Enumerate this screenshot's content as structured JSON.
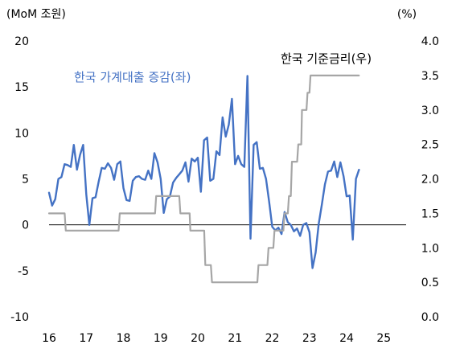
{
  "chart_data": {
    "type": "line",
    "left_unit": "(MoM 조원)",
    "right_unit": "(%)",
    "x_ticks": [
      "16",
      "17",
      "18",
      "19",
      "20",
      "21",
      "22",
      "23",
      "24",
      "25"
    ],
    "x_range": [
      2016,
      2025.6
    ],
    "y_left_ticks": [
      "20",
      "15",
      "10",
      "5",
      "0",
      "-5",
      "-10"
    ],
    "y_left_range": [
      -10,
      20
    ],
    "y_right_ticks": [
      "4.0",
      "3.5",
      "3.0",
      "2.5",
      "2.0",
      "1.5",
      "1.0",
      "0.5",
      "0.0"
    ],
    "y_right_range": [
      0,
      4
    ],
    "grid": false,
    "zero_line": true,
    "series": [
      {
        "name": "한국 가계대출 증감(좌)",
        "axis": "left",
        "color": "#4472C4",
        "x": [
          2016.0,
          2016.083,
          2016.167,
          2016.25,
          2016.333,
          2016.417,
          2016.5,
          2016.583,
          2016.667,
          2016.75,
          2016.833,
          2016.917,
          2017.0,
          2017.083,
          2017.167,
          2017.25,
          2017.333,
          2017.417,
          2017.5,
          2017.583,
          2017.667,
          2017.75,
          2017.833,
          2017.917,
          2018.0,
          2018.083,
          2018.167,
          2018.25,
          2018.333,
          2018.417,
          2018.5,
          2018.583,
          2018.667,
          2018.75,
          2018.833,
          2018.917,
          2019.0,
          2019.083,
          2019.167,
          2019.25,
          2019.333,
          2019.417,
          2019.5,
          2019.583,
          2019.667,
          2019.75,
          2019.833,
          2019.917,
          2020.0,
          2020.083,
          2020.167,
          2020.25,
          2020.333,
          2020.417,
          2020.5,
          2020.583,
          2020.667,
          2020.75,
          2020.833,
          2020.917,
          2021.0,
          2021.083,
          2021.167,
          2021.25,
          2021.333,
          2021.417,
          2021.5,
          2021.583,
          2021.667,
          2021.75,
          2021.833,
          2021.917,
          2022.0,
          2022.083,
          2022.167,
          2022.25,
          2022.333,
          2022.417,
          2022.5,
          2022.583,
          2022.667,
          2022.75,
          2022.833,
          2022.917,
          2023.0,
          2023.083,
          2023.167,
          2023.25,
          2023.333,
          2023.417,
          2023.5,
          2023.583,
          2023.667,
          2023.75,
          2023.833,
          2023.917,
          2024.0,
          2024.083,
          2024.167,
          2024.25,
          2024.333
        ],
        "y": [
          3.5,
          2.1,
          2.8,
          5.0,
          5.2,
          6.6,
          6.5,
          6.3,
          8.7,
          6.0,
          7.6,
          8.7,
          3.3,
          0.0,
          2.9,
          3.0,
          4.7,
          6.2,
          6.1,
          6.7,
          6.2,
          4.9,
          6.6,
          6.9,
          4.0,
          2.7,
          2.6,
          4.8,
          5.2,
          5.3,
          5.0,
          4.9,
          5.9,
          5.0,
          7.8,
          6.8,
          5.0,
          1.3,
          2.8,
          3.1,
          4.6,
          5.1,
          5.5,
          5.9,
          6.8,
          4.7,
          7.2,
          6.9,
          7.3,
          3.6,
          9.2,
          9.5,
          4.8,
          5.0,
          8.0,
          7.6,
          11.7,
          9.6,
          10.9,
          13.7,
          6.6,
          7.5,
          6.6,
          6.3,
          16.2,
          -1.5,
          8.7,
          9.0,
          6.1,
          6.2,
          5.0,
          2.5,
          -0.2,
          -0.6,
          -0.3,
          -1.0,
          1.4,
          0.3,
          0.0,
          -0.7,
          -0.4,
          -1.2,
          0.0,
          0.2,
          -0.8,
          -4.7,
          -3.0,
          0.1,
          2.2,
          4.4,
          5.8,
          5.9,
          6.9,
          5.2,
          6.8,
          5.3,
          3.1,
          3.2,
          -1.6,
          5.0,
          6.0
        ]
      },
      {
        "name": "한국 기준금리(우)",
        "axis": "right",
        "color": "#A6A6A6",
        "x": [
          2016.0,
          2016.42,
          2016.45,
          2017.87,
          2017.9,
          2018.85,
          2018.88,
          2019.5,
          2019.53,
          2019.78,
          2019.8,
          2020.17,
          2020.2,
          2020.35,
          2020.38,
          2021.6,
          2021.63,
          2021.87,
          2021.9,
          2022.03,
          2022.06,
          2022.3,
          2022.33,
          2022.42,
          2022.45,
          2022.5,
          2022.53,
          2022.67,
          2022.7,
          2022.78,
          2022.8,
          2022.92,
          2022.95,
          2023.0,
          2023.03,
          2024.33
        ],
        "y": [
          1.5,
          1.5,
          1.25,
          1.25,
          1.5,
          1.5,
          1.75,
          1.75,
          1.5,
          1.5,
          1.25,
          1.25,
          0.75,
          0.75,
          0.5,
          0.5,
          0.75,
          0.75,
          1.0,
          1.0,
          1.25,
          1.25,
          1.5,
          1.5,
          1.75,
          1.75,
          2.25,
          2.25,
          2.5,
          2.5,
          3.0,
          3.0,
          3.25,
          3.25,
          3.5,
          3.5
        ]
      }
    ]
  }
}
